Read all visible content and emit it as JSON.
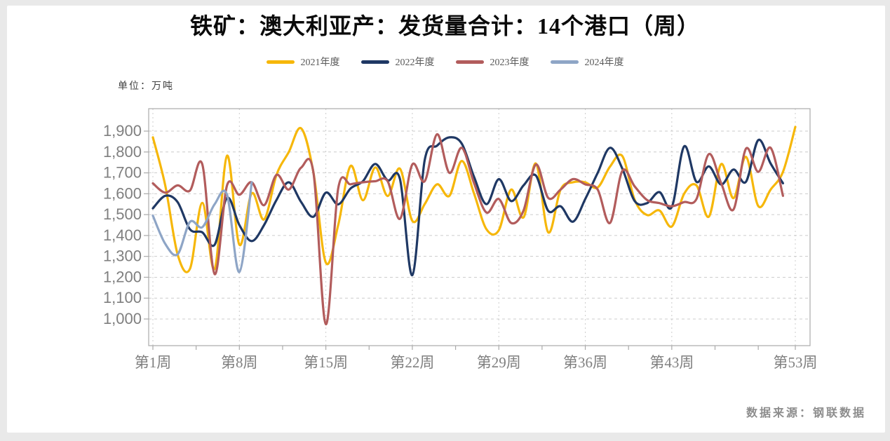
{
  "chart_data": {
    "type": "line",
    "title": "铁矿：澳大利亚产：发货量合计：14个港口（周）",
    "unit_label": "单位：万吨",
    "x_unit": "周",
    "x_total_weeks": 53,
    "x_tick_labels": [
      "第1周",
      "第8周",
      "第15周",
      "第22周",
      "第29周",
      "第36周",
      "第43周",
      "第53周"
    ],
    "x_tick_weeks": [
      1,
      8,
      15,
      22,
      29,
      36,
      43,
      53
    ],
    "y_ticks": [
      1000,
      1100,
      1200,
      1300,
      1400,
      1500,
      1600,
      1700,
      1800,
      1900
    ],
    "y_tick_labels": [
      "1,000",
      "1,100",
      "1,200",
      "1,300",
      "1,400",
      "1,500",
      "1,600",
      "1,700",
      "1,800",
      "1,900"
    ],
    "ylim": [
      870,
      2010
    ],
    "grid": true,
    "legend_position": "top",
    "series": [
      {
        "name": "2021年度",
        "color": "#F6B70A",
        "start_week": 1,
        "values": [
          1870,
          1640,
          1310,
          1240,
          1556,
          1240,
          1782,
          1356,
          1602,
          1477,
          1690,
          1800,
          1913,
          1700,
          1270,
          1450,
          1733,
          1569,
          1726,
          1589,
          1720,
          1470,
          1550,
          1645,
          1590,
          1757,
          1600,
          1430,
          1425,
          1620,
          1487,
          1745,
          1415,
          1620,
          1655,
          1655,
          1630,
          1730,
          1780,
          1570,
          1498,
          1520,
          1443,
          1600,
          1640,
          1490,
          1742,
          1579,
          1777,
          1541,
          1620,
          1705,
          1920
        ]
      },
      {
        "name": "2022年度",
        "color": "#1F3864",
        "start_week": 1,
        "values": [
          1530,
          1590,
          1560,
          1430,
          1415,
          1356,
          1580,
          1450,
          1373,
          1450,
          1570,
          1655,
          1560,
          1490,
          1605,
          1549,
          1625,
          1660,
          1743,
          1664,
          1670,
          1210,
          1760,
          1830,
          1870,
          1840,
          1680,
          1550,
          1670,
          1565,
          1640,
          1687,
          1518,
          1540,
          1466,
          1575,
          1700,
          1820,
          1720,
          1565,
          1555,
          1608,
          1536,
          1827,
          1657,
          1731,
          1644,
          1716,
          1657,
          1857,
          1745,
          1650
        ]
      },
      {
        "name": "2023年度",
        "color": "#B25C5C",
        "start_week": 1,
        "values": [
          1650,
          1605,
          1640,
          1615,
          1740,
          1215,
          1640,
          1595,
          1655,
          1545,
          1690,
          1620,
          1725,
          1700,
          975,
          1625,
          1645,
          1655,
          1660,
          1660,
          1480,
          1740,
          1660,
          1885,
          1700,
          1820,
          1650,
          1510,
          1575,
          1460,
          1520,
          1740,
          1580,
          1620,
          1670,
          1645,
          1620,
          1460,
          1710,
          1635,
          1570,
          1555,
          1540,
          1560,
          1575,
          1790,
          1650,
          1525,
          1815,
          1705,
          1820,
          1590
        ]
      },
      {
        "name": "2024年度",
        "color": "#8EA5C6",
        "start_week": 1,
        "values": [
          1495,
          1360,
          1310,
          1465,
          1440,
          1550,
          1595,
          1225,
          1655
        ]
      }
    ]
  },
  "footer": {
    "source": "数据来源：钢联数据"
  },
  "style_colors": {
    "grid_line": "#cccccc",
    "axis_frame": "#aaaaaa",
    "tick_text": "#7f7f7f",
    "title_text": "#0a0a0a",
    "legend_text": "#595959",
    "source_text": "#8d8d8d",
    "page_margin": "#e9e9e9"
  }
}
